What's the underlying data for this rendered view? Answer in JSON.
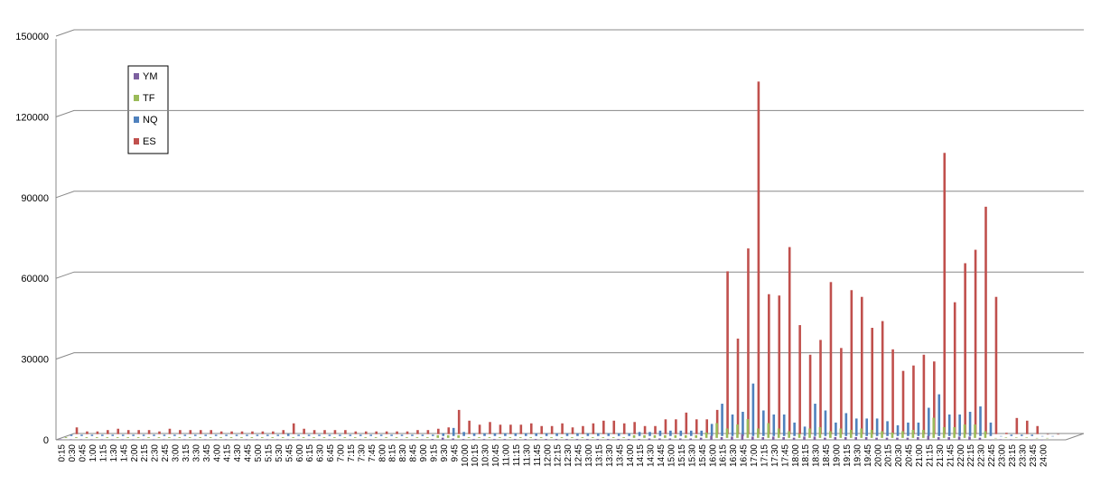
{
  "chart_data": {
    "type": "bar",
    "categories": [
      "0:15",
      "0:30",
      "0:45",
      "1:00",
      "1:15",
      "1:30",
      "1:45",
      "2:00",
      "2:15",
      "2:30",
      "2:45",
      "3:00",
      "3:15",
      "3:30",
      "3:45",
      "4:00",
      "4:15",
      "4:30",
      "4:45",
      "5:00",
      "5:15",
      "5:30",
      "5:45",
      "6:00",
      "6:15",
      "6:30",
      "6:45",
      "7:00",
      "7:15",
      "7:30",
      "7:45",
      "8:00",
      "8:15",
      "8:30",
      "8:45",
      "9:00",
      "9:15",
      "9:30",
      "9:45",
      "10:00",
      "10:15",
      "10:30",
      "10:45",
      "11:00",
      "11:15",
      "11:30",
      "11:45",
      "12:00",
      "12:15",
      "12:30",
      "12:45",
      "13:00",
      "13:15",
      "13:30",
      "13:45",
      "14:00",
      "14:15",
      "14:30",
      "14:45",
      "15:00",
      "15:15",
      "15:30",
      "15:45",
      "16:00",
      "16:15",
      "16:30",
      "16:45",
      "17:00",
      "17:15",
      "17:30",
      "17:45",
      "18:00",
      "18:15",
      "18:30",
      "18:45",
      "19:00",
      "19:15",
      "19:30",
      "19:45",
      "20:00",
      "20:15",
      "20:30",
      "20:45",
      "21:00",
      "21:15",
      "21:30",
      "21:45",
      "22:00",
      "22:15",
      "22:30",
      "22:45",
      "23:00",
      "23:15",
      "23:30",
      "23:45",
      "24:00"
    ],
    "series": [
      {
        "name": "YM",
        "color": "#7d60a0",
        "values": [
          200,
          200,
          200,
          200,
          200,
          200,
          200,
          200,
          200,
          200,
          200,
          200,
          200,
          200,
          200,
          200,
          200,
          200,
          200,
          200,
          200,
          200,
          200,
          200,
          200,
          200,
          200,
          200,
          200,
          200,
          200,
          200,
          200,
          200,
          200,
          200,
          300,
          800,
          500,
          300,
          300,
          300,
          300,
          300,
          300,
          300,
          300,
          300,
          300,
          300,
          300,
          300,
          300,
          300,
          300,
          300,
          300,
          500,
          500,
          500,
          500,
          500,
          800,
          1500,
          1000,
          1200,
          2000,
          1200,
          1000,
          1200,
          1000,
          800,
          1200,
          1200,
          800,
          1000,
          1000,
          1000,
          1000,
          800,
          800,
          800,
          800,
          1000,
          1500,
          1000,
          1000,
          1200,
          1200,
          800,
          0,
          200,
          200,
          200,
          0,
          0
        ]
      },
      {
        "name": "TF",
        "color": "#9bbb59",
        "values": [
          300,
          300,
          300,
          300,
          300,
          300,
          300,
          300,
          300,
          300,
          300,
          300,
          300,
          300,
          300,
          300,
          300,
          300,
          300,
          300,
          300,
          300,
          300,
          300,
          300,
          300,
          300,
          300,
          300,
          300,
          300,
          300,
          300,
          300,
          300,
          300,
          1000,
          1000,
          1000,
          300,
          300,
          300,
          300,
          300,
          300,
          300,
          300,
          300,
          300,
          300,
          300,
          300,
          300,
          300,
          300,
          1000,
          1000,
          1000,
          1000,
          1000,
          1000,
          1000,
          2000,
          5500,
          3500,
          5000,
          7000,
          3500,
          5500,
          3500,
          2500,
          1500,
          3500,
          4000,
          2500,
          3500,
          3000,
          3500,
          3000,
          2500,
          2000,
          2500,
          3000,
          3000,
          7500,
          4000,
          4000,
          5000,
          5000,
          2500,
          0,
          200,
          200,
          200,
          0,
          0
        ]
      },
      {
        "name": "NQ",
        "color": "#4f81bd",
        "values": [
          500,
          500,
          500,
          500,
          500,
          500,
          500,
          500,
          500,
          500,
          500,
          500,
          500,
          500,
          500,
          500,
          500,
          500,
          500,
          500,
          500,
          800,
          500,
          500,
          500,
          500,
          500,
          500,
          500,
          500,
          500,
          500,
          500,
          500,
          500,
          500,
          1000,
          3000,
          1500,
          1000,
          1000,
          1000,
          1000,
          1000,
          1000,
          1000,
          1000,
          1000,
          1000,
          1000,
          1000,
          1000,
          1000,
          1000,
          1000,
          1500,
          1500,
          2000,
          2000,
          2000,
          2000,
          2000,
          4500,
          12000,
          8000,
          9000,
          19500,
          9500,
          8000,
          8000,
          5000,
          3500,
          12000,
          9500,
          5000,
          8500,
          6500,
          6500,
          6500,
          5500,
          4000,
          5000,
          5000,
          10500,
          15500,
          8000,
          8000,
          9000,
          11000,
          5000,
          0,
          500,
          500,
          500,
          0,
          0
        ]
      },
      {
        "name": "ES",
        "color": "#c0504d",
        "values": [
          2500,
          1000,
          1000,
          1500,
          2000,
          1500,
          1500,
          1500,
          1000,
          2000,
          1500,
          1500,
          1500,
          1500,
          1000,
          1000,
          1000,
          1000,
          1000,
          1000,
          1500,
          4000,
          2000,
          1500,
          1500,
          1500,
          1500,
          1000,
          1000,
          1000,
          1000,
          1000,
          1000,
          1500,
          1500,
          2000,
          2500,
          9000,
          5000,
          3500,
          4500,
          3500,
          3500,
          3500,
          4000,
          3000,
          3000,
          4000,
          2500,
          3000,
          4000,
          5000,
          5000,
          4000,
          4500,
          3000,
          3000,
          5500,
          5500,
          8000,
          5500,
          5500,
          9000,
          60500,
          35500,
          69000,
          131000,
          52000,
          51500,
          69500,
          40500,
          29500,
          35000,
          56500,
          32000,
          53500,
          51000,
          39500,
          42000,
          31500,
          23500,
          25500,
          29500,
          27000,
          104500,
          49000,
          63500,
          68500,
          84500,
          51000,
          500,
          6000,
          5000,
          3000,
          0,
          0
        ]
      }
    ],
    "ylim": [
      0,
      150000
    ],
    "yticks": [
      0,
      30000,
      60000,
      90000,
      120000,
      150000
    ],
    "grid": true
  }
}
